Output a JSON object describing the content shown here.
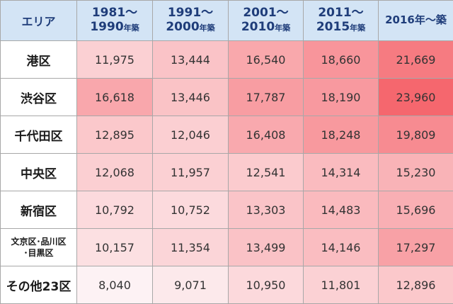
{
  "chart_data": {
    "type": "heatmap",
    "corner_label": "エリア",
    "columns": [
      {
        "line1": "1981～",
        "line2": "1990",
        "suffix": "年築"
      },
      {
        "line1": "1991～",
        "line2": "2000",
        "suffix": "年築"
      },
      {
        "line1": "2001～",
        "line2": "2010",
        "suffix": "年築"
      },
      {
        "line1": "2011～",
        "line2": "2015",
        "suffix": "年築"
      },
      {
        "line1": "",
        "line2": "2016年～築",
        "suffix": ""
      }
    ],
    "rows": [
      {
        "label": "港区",
        "values": [
          11975,
          13444,
          16540,
          18660,
          21669
        ]
      },
      {
        "label": "渋谷区",
        "values": [
          16618,
          13446,
          17787,
          18190,
          23960
        ]
      },
      {
        "label": "千代田区",
        "values": [
          12895,
          12046,
          16408,
          18248,
          19809
        ]
      },
      {
        "label": "中央区",
        "values": [
          12068,
          11957,
          12541,
          14314,
          15230
        ]
      },
      {
        "label": "新宿区",
        "values": [
          10792,
          10752,
          13303,
          14483,
          15696
        ]
      },
      {
        "label": "文京区･品川区･目黒区",
        "label_lines": [
          "文京区･品川区",
          "･目黒区"
        ],
        "values": [
          10157,
          11354,
          13499,
          14146,
          17297
        ]
      },
      {
        "label": "その他23区",
        "values": [
          8040,
          9071,
          10950,
          11801,
          12896
        ]
      }
    ],
    "color_scale": {
      "low": "#fdf2f4",
      "high": "#f5676e"
    }
  }
}
